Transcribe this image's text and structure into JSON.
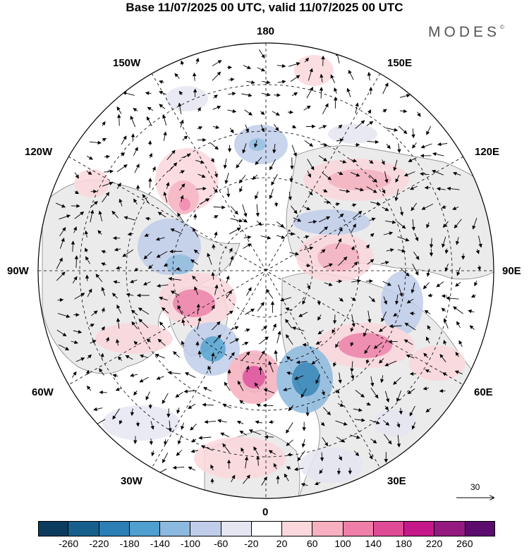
{
  "title": "Base 11/07/2025 00 UTC, valid 11/07/2025 00 UTC",
  "brand": "MODES",
  "brand_mark": "©",
  "longitude_labels": {
    "top": "180",
    "bottom": "0",
    "left": "90W",
    "right": "90E",
    "upper_left": "150W",
    "upper_right": "150E",
    "mid_upper_left": "120W",
    "mid_upper_right": "120E",
    "mid_lower_left": "60W",
    "mid_lower_right": "60E",
    "lower_left": "30W",
    "lower_right": "30E"
  },
  "vector_scale": {
    "label": "30"
  },
  "colorbar": {
    "ticks": [
      "-260",
      "-220",
      "-180",
      "-140",
      "-100",
      "-60",
      "-20",
      "20",
      "60",
      "100",
      "140",
      "180",
      "220",
      "260"
    ],
    "colors": [
      "#0b3c5e",
      "#165f8d",
      "#2b7fb6",
      "#4f9fcf",
      "#8cb9df",
      "#c0cdea",
      "#e6e6f3",
      "#ffffff",
      "#fbd8dc",
      "#f6b0bf",
      "#ef7fa8",
      "#e04b97",
      "#c5198a",
      "#951a80",
      "#5c0c6e"
    ]
  }
}
